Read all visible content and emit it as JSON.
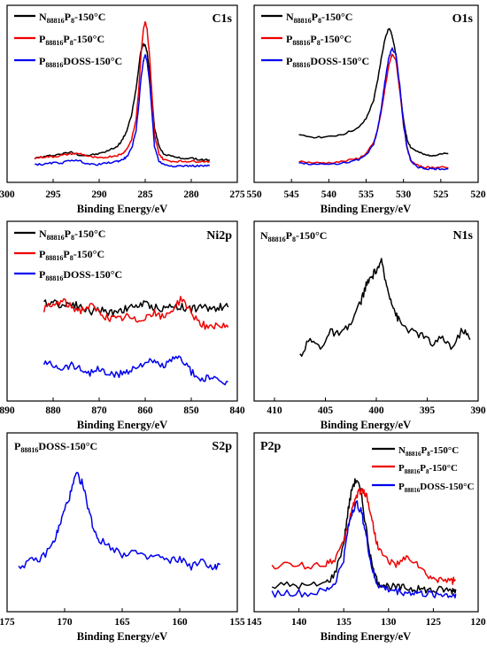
{
  "colors": {
    "black": "#000000",
    "red": "#ee0000",
    "blue": "#0000ee"
  },
  "legend_text": {
    "ni_main": "N",
    "ni_sub": "88816",
    "ni_mid": "P",
    "ni_sub2": "8",
    "ni_tail": "-150°C",
    "ps_main": "P",
    "ps_sub": "88816",
    "ps_mid": "P",
    "ps_sub2": "8",
    "ps_tail": "-150°C",
    "pd_main": "P",
    "pd_sub": "88816",
    "pd_tail": "DOSS-150°C"
  },
  "chart_data": [
    {
      "type": "line",
      "region": "C1s",
      "xlabel": "Binding Energy/eV",
      "xlim": [
        300,
        275
      ],
      "xticks": [
        300,
        295,
        290,
        285,
        280,
        275
      ],
      "legend": "top-left",
      "series": [
        {
          "name": "N88816P8-150°C",
          "color": "black",
          "x": [
            297,
            296,
            295,
            294,
            293,
            292,
            291,
            290,
            289,
            288,
            287.5,
            287,
            286.5,
            286,
            285.7,
            285.5,
            285.2,
            285,
            284.8,
            284.5,
            284.2,
            284,
            283.5,
            283,
            282,
            281,
            280,
            279,
            278
          ],
          "y": [
            0.1,
            0.11,
            0.12,
            0.13,
            0.14,
            0.12,
            0.12,
            0.13,
            0.15,
            0.18,
            0.22,
            0.28,
            0.38,
            0.55,
            0.7,
            0.8,
            0.85,
            0.84,
            0.8,
            0.65,
            0.45,
            0.3,
            0.18,
            0.13,
            0.11,
            0.1,
            0.1,
            0.09,
            0.09
          ]
        },
        {
          "name": "P88816P8-150°C",
          "color": "red",
          "x": [
            297,
            296,
            295,
            294,
            293,
            292,
            291,
            290,
            289,
            288,
            287.5,
            287,
            286.5,
            286,
            285.7,
            285.5,
            285.2,
            285,
            284.8,
            284.5,
            284.2,
            284,
            283.5,
            283,
            282,
            281,
            280,
            279,
            278
          ],
          "y": [
            0.1,
            0.11,
            0.11,
            0.12,
            0.13,
            0.13,
            0.11,
            0.1,
            0.11,
            0.12,
            0.13,
            0.16,
            0.22,
            0.35,
            0.55,
            0.75,
            0.95,
            1.0,
            0.95,
            0.75,
            0.45,
            0.25,
            0.13,
            0.09,
            0.08,
            0.08,
            0.08,
            0.08,
            0.08
          ]
        },
        {
          "name": "P88816DOSS-150°C",
          "color": "blue",
          "x": [
            297,
            296,
            295,
            294,
            293,
            292,
            291,
            290,
            289,
            288,
            287.5,
            287,
            286.5,
            286,
            285.7,
            285.5,
            285.2,
            285,
            284.8,
            284.5,
            284.2,
            284,
            283.5,
            283,
            282,
            281,
            280,
            279,
            278
          ],
          "y": [
            0.06,
            0.06,
            0.07,
            0.07,
            0.09,
            0.08,
            0.06,
            0.06,
            0.07,
            0.08,
            0.09,
            0.11,
            0.16,
            0.28,
            0.45,
            0.6,
            0.74,
            0.78,
            0.74,
            0.58,
            0.35,
            0.18,
            0.08,
            0.06,
            0.05,
            0.05,
            0.05,
            0.05,
            0.05
          ]
        }
      ]
    },
    {
      "type": "line",
      "region": "O1s",
      "xlabel": "Binding Energy/eV",
      "xlim": [
        550,
        520
      ],
      "xticks": [
        550,
        545,
        540,
        535,
        530,
        525,
        520
      ],
      "legend": "top-left",
      "series": [
        {
          "name": "N88816P8-150°C",
          "color": "black",
          "x": [
            544,
            542,
            540,
            538,
            536,
            535,
            534,
            533.5,
            533,
            532.5,
            532,
            531.7,
            531.5,
            531,
            530.5,
            530,
            529.5,
            529,
            528,
            527,
            526,
            525,
            524
          ],
          "y": [
            0.25,
            0.24,
            0.24,
            0.26,
            0.3,
            0.36,
            0.48,
            0.6,
            0.75,
            0.88,
            0.95,
            0.94,
            0.9,
            0.78,
            0.55,
            0.35,
            0.22,
            0.17,
            0.14,
            0.12,
            0.12,
            0.13,
            0.13
          ]
        },
        {
          "name": "P88816P8-150°C",
          "color": "red",
          "x": [
            544,
            542,
            540,
            538,
            536,
            535,
            534,
            533.5,
            533,
            532.5,
            532,
            531.7,
            531.5,
            531,
            530.5,
            530,
            529.5,
            529,
            528,
            527,
            526,
            525,
            524
          ],
          "y": [
            0.08,
            0.07,
            0.07,
            0.08,
            0.1,
            0.13,
            0.2,
            0.28,
            0.4,
            0.55,
            0.7,
            0.76,
            0.78,
            0.74,
            0.55,
            0.32,
            0.16,
            0.08,
            0.05,
            0.04,
            0.04,
            0.04,
            0.04
          ]
        },
        {
          "name": "P88816DOSS-150°C",
          "color": "blue",
          "x": [
            544,
            542,
            540,
            538,
            536,
            535,
            534,
            533.5,
            533,
            532.5,
            532,
            531.7,
            531.5,
            531,
            530.5,
            530,
            529.5,
            529,
            528,
            527,
            526,
            525,
            524
          ],
          "y": [
            0.07,
            0.06,
            0.06,
            0.07,
            0.09,
            0.12,
            0.19,
            0.28,
            0.42,
            0.6,
            0.75,
            0.8,
            0.82,
            0.78,
            0.58,
            0.33,
            0.17,
            0.08,
            0.04,
            0.03,
            0.03,
            0.03,
            0.03
          ]
        }
      ]
    },
    {
      "type": "line",
      "region": "Ni2p",
      "xlabel": "Binding Energy/eV",
      "xlim": [
        890,
        840
      ],
      "xticks": [
        890,
        880,
        870,
        860,
        850,
        840
      ],
      "legend": "top-left",
      "series": [
        {
          "name": "N88816P8-150°C",
          "color": "black",
          "x": [
            882,
            880,
            878,
            876,
            874,
            872,
            870,
            868,
            866,
            864,
            862,
            860,
            858,
            856,
            854,
            852,
            850,
            848,
            846,
            844,
            842
          ],
          "y": [
            0.58,
            0.6,
            0.57,
            0.59,
            0.56,
            0.53,
            0.55,
            0.52,
            0.54,
            0.55,
            0.57,
            0.58,
            0.56,
            0.55,
            0.57,
            0.56,
            0.55,
            0.56,
            0.55,
            0.56,
            0.56
          ]
        },
        {
          "name": "P88816P8-150°C",
          "color": "red",
          "x": [
            882,
            880,
            878,
            876,
            874,
            872,
            870,
            868,
            866,
            864,
            862,
            860,
            858,
            856,
            854,
            852,
            850,
            848,
            846,
            844,
            842
          ],
          "y": [
            0.55,
            0.57,
            0.6,
            0.56,
            0.54,
            0.57,
            0.53,
            0.49,
            0.48,
            0.5,
            0.47,
            0.5,
            0.52,
            0.49,
            0.55,
            0.62,
            0.52,
            0.46,
            0.42,
            0.44,
            0.43
          ]
        },
        {
          "name": "P88816DOSS-150°C",
          "color": "blue",
          "x": [
            882,
            880,
            878,
            876,
            874,
            872,
            870,
            868,
            866,
            864,
            862,
            860,
            858,
            856,
            854,
            852,
            850,
            848,
            846,
            844,
            842
          ],
          "y": [
            0.2,
            0.19,
            0.17,
            0.19,
            0.16,
            0.14,
            0.16,
            0.13,
            0.12,
            0.15,
            0.17,
            0.21,
            0.2,
            0.18,
            0.22,
            0.23,
            0.14,
            0.09,
            0.11,
            0.07,
            0.08
          ]
        }
      ]
    },
    {
      "type": "line",
      "region": "N1s",
      "xlabel": "Binding Energy/eV",
      "xlim": [
        412,
        390
      ],
      "xticks": [
        410,
        405,
        400,
        395,
        390
      ],
      "legend": "top-left",
      "series": [
        {
          "name": "N88816P8-150°C",
          "color": "black",
          "x": [
            407.5,
            406.5,
            405.5,
            404.5,
            403.5,
            402.5,
            401.5,
            401,
            400.5,
            400,
            399.5,
            399,
            398.5,
            398,
            397.5,
            396.5,
            395.5,
            394.5,
            393.5,
            392.5,
            391.5,
            390.8
          ],
          "y": [
            0.25,
            0.35,
            0.3,
            0.4,
            0.38,
            0.45,
            0.6,
            0.7,
            0.75,
            0.8,
            0.85,
            0.7,
            0.6,
            0.5,
            0.45,
            0.4,
            0.38,
            0.32,
            0.36,
            0.3,
            0.42,
            0.35
          ]
        }
      ]
    },
    {
      "type": "line",
      "region": "S2p",
      "xlabel": "Binding Energy/eV",
      "xlim": [
        175,
        155
      ],
      "xticks": [
        175,
        170,
        165,
        160,
        155
      ],
      "legend": "top-left",
      "series": [
        {
          "name": "P88816DOSS-150°C",
          "color": "blue",
          "x": [
            174,
            173,
            172,
            171,
            170.5,
            170,
            169.5,
            169,
            168.5,
            168,
            167.5,
            167,
            166,
            165,
            164,
            163,
            162,
            161,
            160,
            159,
            158,
            157,
            156.5
          ],
          "y": [
            0.25,
            0.28,
            0.3,
            0.4,
            0.5,
            0.62,
            0.72,
            0.85,
            0.8,
            0.65,
            0.5,
            0.42,
            0.38,
            0.33,
            0.35,
            0.3,
            0.32,
            0.28,
            0.3,
            0.25,
            0.28,
            0.24,
            0.26
          ]
        }
      ]
    },
    {
      "type": "line",
      "region": "P2p",
      "xlabel": "Binding Energy/eV",
      "xlim": [
        145,
        120
      ],
      "xticks": [
        145,
        140,
        135,
        130,
        125,
        120
      ],
      "legend": "top-right",
      "series": [
        {
          "name": "N88816P8-150°C",
          "color": "black",
          "x": [
            143,
            141,
            139,
            137,
            136,
            135,
            134.5,
            134,
            133.5,
            133,
            132.5,
            132,
            131.5,
            131,
            130,
            129,
            128,
            127,
            126,
            125,
            124,
            123,
            122.5
          ],
          "y": [
            0.12,
            0.13,
            0.12,
            0.14,
            0.2,
            0.4,
            0.62,
            0.78,
            0.82,
            0.7,
            0.5,
            0.3,
            0.18,
            0.14,
            0.12,
            0.11,
            0.11,
            0.1,
            0.1,
            0.09,
            0.1,
            0.09,
            0.1
          ]
        },
        {
          "name": "P88816P8-150°C",
          "color": "red",
          "x": [
            143,
            141,
            139,
            137,
            136,
            135,
            134.5,
            134,
            133.5,
            133,
            132.5,
            132,
            131.5,
            131,
            130,
            129,
            128,
            127,
            126,
            125,
            124,
            123,
            122.5
          ],
          "y": [
            0.25,
            0.26,
            0.25,
            0.27,
            0.3,
            0.4,
            0.52,
            0.64,
            0.72,
            0.75,
            0.72,
            0.6,
            0.45,
            0.35,
            0.28,
            0.26,
            0.3,
            0.28,
            0.2,
            0.16,
            0.17,
            0.15,
            0.16
          ]
        },
        {
          "name": "P88816DOSS-150°C",
          "color": "blue",
          "x": [
            143,
            141,
            139,
            137,
            136,
            135,
            134.5,
            134,
            133.5,
            133,
            132.5,
            132,
            131.5,
            131,
            130,
            129,
            128,
            127,
            126,
            125,
            124,
            123,
            122.5
          ],
          "y": [
            0.07,
            0.08,
            0.07,
            0.09,
            0.14,
            0.3,
            0.5,
            0.62,
            0.66,
            0.6,
            0.45,
            0.28,
            0.16,
            0.12,
            0.1,
            0.09,
            0.08,
            0.08,
            0.07,
            0.07,
            0.07,
            0.06,
            0.07
          ]
        }
      ]
    }
  ]
}
